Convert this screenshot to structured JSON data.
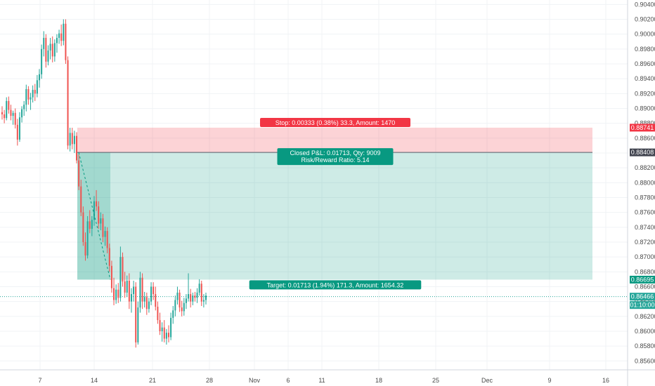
{
  "chart_data": {
    "type": "candlestick",
    "y_axis": {
      "min": 0.8548,
      "max": 0.9046,
      "ticks": [
        "0.90400",
        "0.90200",
        "0.90000",
        "0.89800",
        "0.89600",
        "0.89400",
        "0.89200",
        "0.89000",
        "0.88800",
        "0.88600",
        "0.88400",
        "0.88200",
        "0.88000",
        "0.87800",
        "0.87600",
        "0.87400",
        "0.87200",
        "0.87000",
        "0.86800",
        "0.86600",
        "0.86400",
        "0.86200",
        "0.86000",
        "0.85800",
        "0.85600"
      ]
    },
    "x_axis": {
      "labels": [
        "7",
        "14",
        "21",
        "28",
        "Nov",
        "6",
        "11",
        "18",
        "25",
        "Dec",
        "9",
        "16"
      ]
    },
    "grid": true,
    "up_color": "#26a69a",
    "down_color": "#ef5350",
    "price_labels": {
      "stop_price": "0.88741",
      "entry_price": "0.88408",
      "target_price": "0.86695",
      "current_price": "0.86466",
      "countdown": "01:10:00"
    },
    "position": {
      "type": "short",
      "stop_label": "Stop: 0.00333 (0.38%) 33.3, Amount: 1470",
      "pnl_label": "Closed P&L: 0.01713, Qty: 9009",
      "rr_label": "Risk/Reward Ratio: 5.14",
      "target_label": "Target: 0.01713 (1.94%) 171.3, Amount: 1654.32",
      "stop_color": "#f23645",
      "target_color": "#089981"
    },
    "candles": [
      [
        0.8895,
        0.8903,
        0.8885,
        0.8892
      ],
      [
        0.8892,
        0.8898,
        0.888,
        0.8887
      ],
      [
        0.8887,
        0.8915,
        0.8884,
        0.891
      ],
      [
        0.891,
        0.8916,
        0.8893,
        0.8898
      ],
      [
        0.8898,
        0.8905,
        0.8884,
        0.889
      ],
      [
        0.889,
        0.8897,
        0.8878,
        0.8894
      ],
      [
        0.8894,
        0.89,
        0.8873,
        0.8878
      ],
      [
        0.8878,
        0.8886,
        0.885,
        0.8858
      ],
      [
        0.8858,
        0.8895,
        0.8855,
        0.8888
      ],
      [
        0.8888,
        0.8903,
        0.8881,
        0.8899
      ],
      [
        0.8899,
        0.891,
        0.889,
        0.8905
      ],
      [
        0.8905,
        0.8932,
        0.8896,
        0.8926
      ],
      [
        0.8926,
        0.893,
        0.8905,
        0.8912
      ],
      [
        0.8912,
        0.8921,
        0.8898,
        0.8915
      ],
      [
        0.8915,
        0.8931,
        0.8908,
        0.8925
      ],
      [
        0.8925,
        0.8933,
        0.891,
        0.892
      ],
      [
        0.892,
        0.8945,
        0.8915,
        0.8938
      ],
      [
        0.8938,
        0.8953,
        0.8928,
        0.8946
      ],
      [
        0.8946,
        0.8986,
        0.894,
        0.898
      ],
      [
        0.898,
        0.9004,
        0.897,
        0.8995
      ],
      [
        0.8995,
        0.9,
        0.8955,
        0.8963
      ],
      [
        0.8963,
        0.8985,
        0.8958,
        0.8978
      ],
      [
        0.8978,
        0.8995,
        0.8966,
        0.8987
      ],
      [
        0.8987,
        0.8997,
        0.8962,
        0.897
      ],
      [
        0.897,
        0.8993,
        0.8963,
        0.8988
      ],
      [
        0.8988,
        0.9,
        0.8975,
        0.8995
      ],
      [
        0.8995,
        0.9006,
        0.8987,
        0.9001
      ],
      [
        0.9001,
        0.9013,
        0.8984,
        0.8991
      ],
      [
        0.8991,
        0.902,
        0.8985,
        0.9014
      ],
      [
        0.9014,
        0.902,
        0.896,
        0.8965
      ],
      [
        0.8965,
        0.897,
        0.8845,
        0.885
      ],
      [
        0.885,
        0.8874,
        0.8842,
        0.8867
      ],
      [
        0.8867,
        0.8874,
        0.8845,
        0.8852
      ],
      [
        0.8852,
        0.887,
        0.884,
        0.8863
      ],
      [
        0.8863,
        0.8868,
        0.8826,
        0.883
      ],
      [
        0.883,
        0.8838,
        0.879,
        0.8795
      ],
      [
        0.8795,
        0.8804,
        0.8755,
        0.876
      ],
      [
        0.876,
        0.8768,
        0.8715,
        0.872
      ],
      [
        0.872,
        0.8733,
        0.8695,
        0.8702
      ],
      [
        0.8702,
        0.8755,
        0.8698,
        0.8748
      ],
      [
        0.8748,
        0.8763,
        0.8732,
        0.8738
      ],
      [
        0.8738,
        0.8755,
        0.8728,
        0.875
      ],
      [
        0.875,
        0.8782,
        0.8742,
        0.8775
      ],
      [
        0.8775,
        0.879,
        0.8762,
        0.8768
      ],
      [
        0.8768,
        0.8775,
        0.8738,
        0.8745
      ],
      [
        0.8745,
        0.876,
        0.8736,
        0.8752
      ],
      [
        0.8752,
        0.8758,
        0.872,
        0.8727
      ],
      [
        0.8727,
        0.8741,
        0.8715,
        0.8735
      ],
      [
        0.8735,
        0.874,
        0.8705,
        0.8712
      ],
      [
        0.8712,
        0.8718,
        0.868,
        0.8688
      ],
      [
        0.8688,
        0.8695,
        0.8652,
        0.8658
      ],
      [
        0.8658,
        0.8672,
        0.8635,
        0.8642
      ],
      [
        0.8642,
        0.8663,
        0.8637,
        0.8656
      ],
      [
        0.8656,
        0.8665,
        0.8638,
        0.8645
      ],
      [
        0.8645,
        0.8714,
        0.864,
        0.87
      ],
      [
        0.87,
        0.8706,
        0.866,
        0.8667
      ],
      [
        0.8667,
        0.868,
        0.8645,
        0.8652
      ],
      [
        0.8652,
        0.8675,
        0.8646,
        0.8668
      ],
      [
        0.8668,
        0.8678,
        0.863,
        0.864
      ],
      [
        0.864,
        0.8658,
        0.8625,
        0.865
      ],
      [
        0.865,
        0.8668,
        0.864,
        0.866
      ],
      [
        0.866,
        0.8666,
        0.8578,
        0.8585
      ],
      [
        0.8585,
        0.864,
        0.8582,
        0.8632
      ],
      [
        0.8632,
        0.868,
        0.8625,
        0.8672
      ],
      [
        0.8672,
        0.8678,
        0.863,
        0.864
      ],
      [
        0.864,
        0.8653,
        0.8632,
        0.8646
      ],
      [
        0.8646,
        0.8652,
        0.8622,
        0.863
      ],
      [
        0.863,
        0.8645,
        0.8625,
        0.864
      ],
      [
        0.864,
        0.8666,
        0.8635,
        0.866
      ],
      [
        0.866,
        0.8666,
        0.8642,
        0.865
      ],
      [
        0.865,
        0.866,
        0.8628,
        0.8633
      ],
      [
        0.8633,
        0.864,
        0.861,
        0.8615
      ],
      [
        0.8615,
        0.8625,
        0.8595,
        0.86
      ],
      [
        0.86,
        0.8612,
        0.8586,
        0.8605
      ],
      [
        0.8605,
        0.8615,
        0.8585,
        0.859
      ],
      [
        0.859,
        0.8603,
        0.8582,
        0.8598
      ],
      [
        0.8598,
        0.8608,
        0.8585,
        0.8592
      ],
      [
        0.8592,
        0.8625,
        0.8588,
        0.8618
      ],
      [
        0.8618,
        0.8634,
        0.861,
        0.8628
      ],
      [
        0.8628,
        0.8648,
        0.862,
        0.8642
      ],
      [
        0.8642,
        0.866,
        0.8636,
        0.8652
      ],
      [
        0.8652,
        0.8656,
        0.8626,
        0.8632
      ],
      [
        0.8632,
        0.8641,
        0.862,
        0.8627
      ],
      [
        0.8627,
        0.8645,
        0.8621,
        0.8638
      ],
      [
        0.8638,
        0.865,
        0.863,
        0.8644
      ],
      [
        0.8644,
        0.8678,
        0.864,
        0.865
      ],
      [
        0.865,
        0.8657,
        0.8632,
        0.864
      ],
      [
        0.864,
        0.8652,
        0.8635,
        0.8648
      ],
      [
        0.8648,
        0.8653,
        0.864,
        0.8645
      ],
      [
        0.8645,
        0.8658,
        0.8638,
        0.8652
      ],
      [
        0.8652,
        0.867,
        0.8648,
        0.8664
      ],
      [
        0.8664,
        0.8668,
        0.8634,
        0.864
      ],
      [
        0.864,
        0.865,
        0.8632,
        0.8642
      ],
      [
        0.8642,
        0.8652,
        0.8636,
        0.8648
      ]
    ]
  }
}
